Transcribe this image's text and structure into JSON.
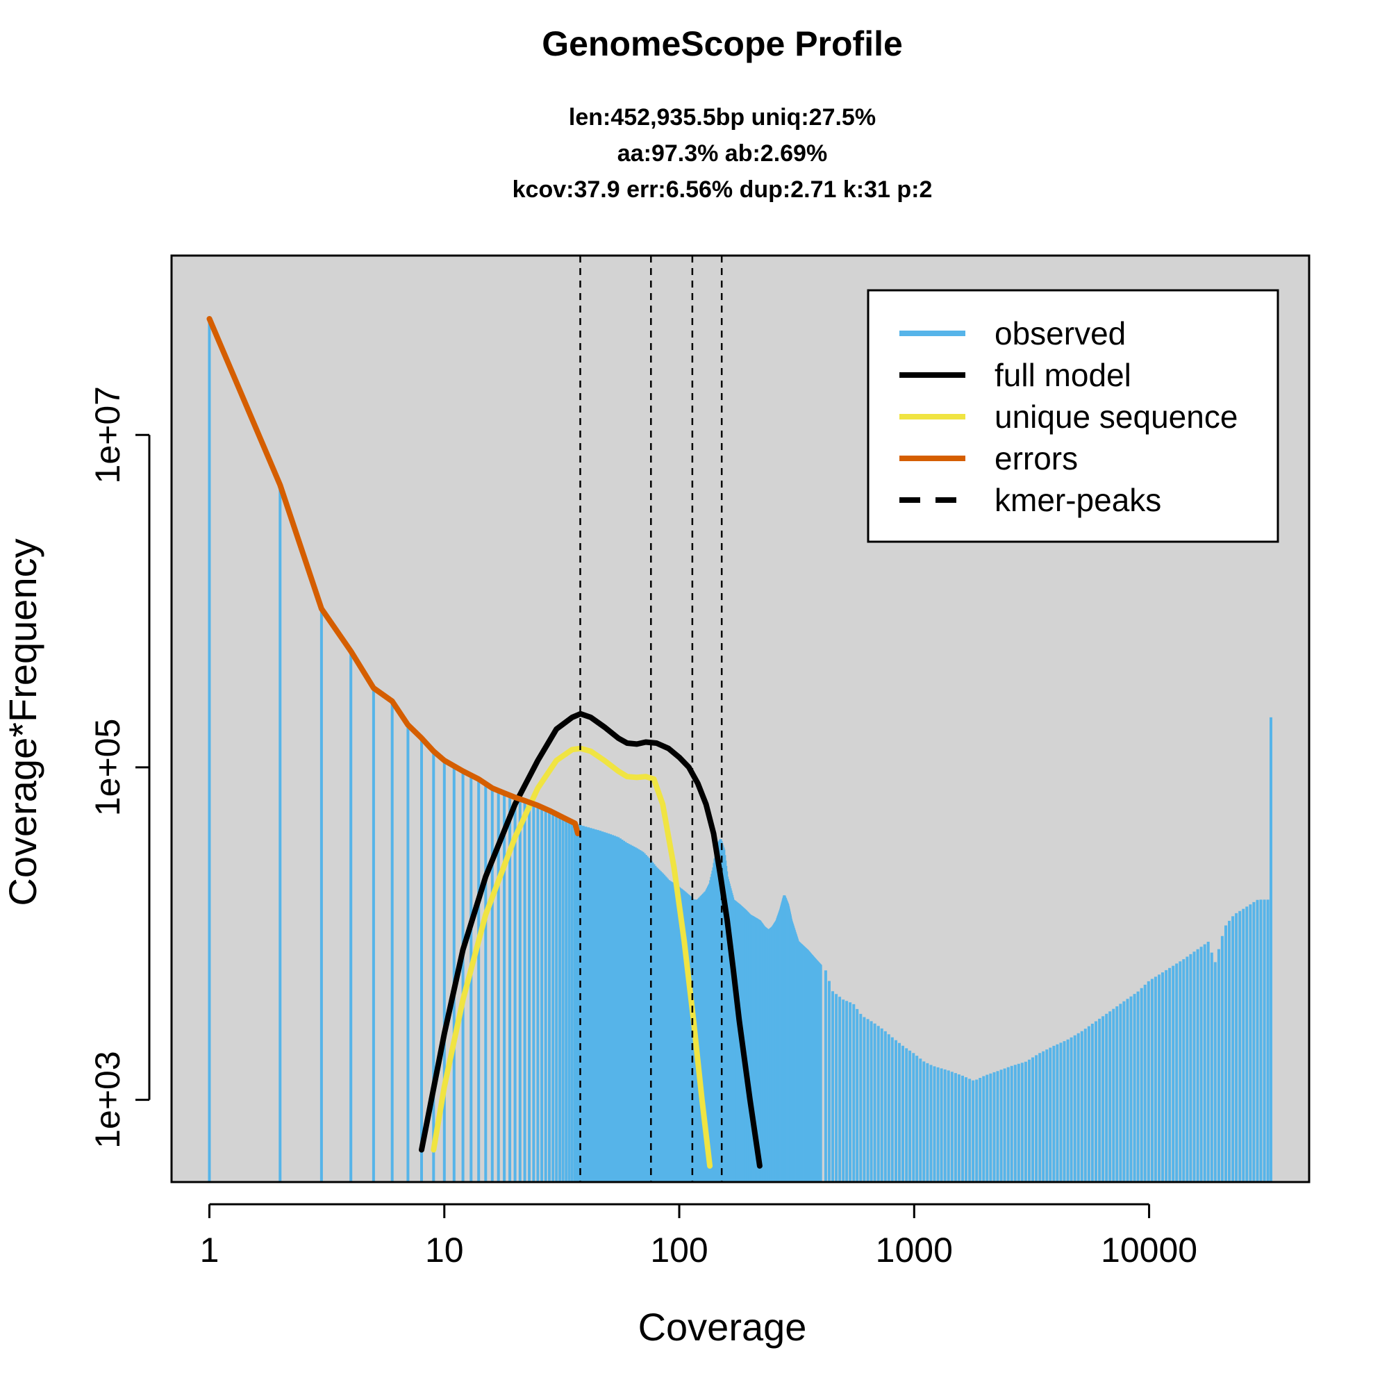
{
  "chart_data": {
    "type": "line",
    "title": "GenomeScope Profile",
    "subtitle_lines": [
      "len:452,935.5bp uniq:27.5%",
      "aa:97.3% ab:2.69%",
      "kcov:37.9 err:6.56%  dup:2.71  k:31 p:2"
    ],
    "xlabel": "Coverage",
    "ylabel": "Coverage*Frequency",
    "x_scale": "log",
    "y_scale": "log",
    "xlim": [
      0.69,
      48000
    ],
    "ylim": [
      320,
      120000000
    ],
    "x_ticks": [
      1,
      10,
      100,
      1000,
      10000
    ],
    "x_tick_labels": [
      "1",
      "10",
      "100",
      "1000",
      "10000"
    ],
    "y_ticks": [
      1000,
      100000,
      10000000
    ],
    "y_tick_labels": [
      "1e+03",
      "1e+05",
      "1e+07"
    ],
    "colors": {
      "observed": "#56b4e9",
      "full_model": "#000000",
      "unique_sequence": "#f0e442",
      "errors": "#d55e00",
      "kmer_peaks": "#000000",
      "plot_background": "#d3d3d3"
    },
    "legend": {
      "position": "top-right",
      "entries": [
        "observed",
        "full model",
        "unique sequence",
        "errors",
        "kmer-peaks"
      ]
    },
    "kmer_peaks": [
      37.9,
      75.8,
      113.7,
      151.6
    ],
    "series": [
      {
        "name": "observed",
        "kind": "histogram",
        "points": [
          [
            1,
            50000000
          ],
          [
            2,
            5000000
          ],
          [
            3,
            900000
          ],
          [
            4,
            500000
          ],
          [
            5,
            300000
          ],
          [
            6,
            250000
          ],
          [
            7,
            180000
          ],
          [
            8,
            150000
          ],
          [
            9,
            125000
          ],
          [
            10,
            110000
          ],
          [
            12,
            95000
          ],
          [
            14,
            85000
          ],
          [
            16,
            75000
          ],
          [
            18,
            70000
          ],
          [
            20,
            66000
          ],
          [
            22,
            63000
          ],
          [
            25,
            59000
          ],
          [
            28,
            55000
          ],
          [
            32,
            50000
          ],
          [
            36,
            46000
          ],
          [
            40,
            44000
          ],
          [
            45,
            42000
          ],
          [
            50,
            40000
          ],
          [
            55,
            38000
          ],
          [
            60,
            35000
          ],
          [
            65,
            33000
          ],
          [
            70,
            31000
          ],
          [
            75,
            28000
          ],
          [
            80,
            25000
          ],
          [
            85,
            23000
          ],
          [
            90,
            21000
          ],
          [
            95,
            20000
          ],
          [
            100,
            19000
          ],
          [
            105,
            18000
          ],
          [
            110,
            17000
          ],
          [
            115,
            16000
          ],
          [
            120,
            16000
          ],
          [
            125,
            17000
          ],
          [
            130,
            18000
          ],
          [
            135,
            20000
          ],
          [
            140,
            25000
          ],
          [
            145,
            34000
          ],
          [
            150,
            37000
          ],
          [
            155,
            32000
          ],
          [
            160,
            22000
          ],
          [
            170,
            16000
          ],
          [
            180,
            15000
          ],
          [
            190,
            14000
          ],
          [
            200,
            13000
          ],
          [
            210,
            12500
          ],
          [
            220,
            12000
          ],
          [
            230,
            11000
          ],
          [
            240,
            10500
          ],
          [
            250,
            11000
          ],
          [
            260,
            12000
          ],
          [
            270,
            14000
          ],
          [
            280,
            17000
          ],
          [
            290,
            15000
          ],
          [
            300,
            12000
          ],
          [
            320,
            9000
          ],
          [
            350,
            8000
          ],
          [
            380,
            7000
          ],
          [
            420,
            6000
          ],
          [
            450,
            4500
          ],
          [
            500,
            4000
          ],
          [
            550,
            3800
          ],
          [
            600,
            3200
          ],
          [
            650,
            3000
          ],
          [
            700,
            2800
          ],
          [
            750,
            2600
          ],
          [
            800,
            2400
          ],
          [
            900,
            2100
          ],
          [
            1000,
            1900
          ],
          [
            1100,
            1700
          ],
          [
            1200,
            1600
          ],
          [
            1400,
            1500
          ],
          [
            1600,
            1400
          ],
          [
            1800,
            1300
          ],
          [
            2000,
            1400
          ],
          [
            2300,
            1500
          ],
          [
            2600,
            1600
          ],
          [
            3000,
            1700
          ],
          [
            3400,
            1900
          ],
          [
            3900,
            2100
          ],
          [
            4500,
            2300
          ],
          [
            5200,
            2600
          ],
          [
            6000,
            3000
          ],
          [
            7000,
            3500
          ],
          [
            8000,
            4000
          ],
          [
            9000,
            4500
          ],
          [
            10000,
            5200
          ],
          [
            14000,
            7000
          ],
          [
            16000,
            8000
          ],
          [
            18000,
            9000
          ],
          [
            19000,
            6500
          ],
          [
            21000,
            11000
          ],
          [
            23000,
            13000
          ],
          [
            25000,
            14000
          ],
          [
            27000,
            15000
          ],
          [
            29000,
            16000
          ],
          [
            33000,
            200000
          ]
        ]
      },
      {
        "name": "full model",
        "kind": "line",
        "points": [
          [
            8,
            500
          ],
          [
            10,
            2500
          ],
          [
            12,
            8000
          ],
          [
            15,
            22000
          ],
          [
            20,
            60000
          ],
          [
            25,
            110000
          ],
          [
            30,
            170000
          ],
          [
            35,
            200000
          ],
          [
            38,
            210000
          ],
          [
            42,
            200000
          ],
          [
            48,
            175000
          ],
          [
            55,
            150000
          ],
          [
            60,
            140000
          ],
          [
            66,
            138000
          ],
          [
            72,
            142000
          ],
          [
            80,
            140000
          ],
          [
            90,
            130000
          ],
          [
            100,
            115000
          ],
          [
            110,
            100000
          ],
          [
            120,
            80000
          ],
          [
            130,
            60000
          ],
          [
            140,
            40000
          ],
          [
            150,
            22000
          ],
          [
            160,
            12000
          ],
          [
            170,
            6000
          ],
          [
            180,
            3000
          ],
          [
            200,
            1000
          ],
          [
            220,
            400
          ]
        ]
      },
      {
        "name": "unique sequence",
        "kind": "line",
        "points": [
          [
            9,
            500
          ],
          [
            10,
            1200
          ],
          [
            12,
            4000
          ],
          [
            15,
            13000
          ],
          [
            20,
            38000
          ],
          [
            25,
            75000
          ],
          [
            30,
            110000
          ],
          [
            35,
            128000
          ],
          [
            38,
            130000
          ],
          [
            42,
            125000
          ],
          [
            48,
            110000
          ],
          [
            55,
            95000
          ],
          [
            60,
            88000
          ],
          [
            66,
            87000
          ],
          [
            72,
            88000
          ],
          [
            78,
            85000
          ],
          [
            85,
            60000
          ],
          [
            95,
            25000
          ],
          [
            105,
            9000
          ],
          [
            115,
            3000
          ],
          [
            125,
            1000
          ],
          [
            135,
            400
          ]
        ]
      },
      {
        "name": "errors",
        "kind": "line",
        "points": [
          [
            1,
            50000000
          ],
          [
            2,
            5000000
          ],
          [
            3,
            900000
          ],
          [
            4,
            500000
          ],
          [
            5,
            300000
          ],
          [
            6,
            250000
          ],
          [
            7,
            180000
          ],
          [
            8,
            150000
          ],
          [
            9,
            125000
          ],
          [
            10,
            110000
          ],
          [
            12,
            95000
          ],
          [
            14,
            85000
          ],
          [
            16,
            75000
          ],
          [
            18,
            70000
          ],
          [
            20,
            66000
          ],
          [
            22,
            63000
          ],
          [
            25,
            59000
          ],
          [
            28,
            55000
          ],
          [
            32,
            50000
          ],
          [
            36,
            46000
          ],
          [
            37,
            40000
          ]
        ]
      }
    ]
  }
}
